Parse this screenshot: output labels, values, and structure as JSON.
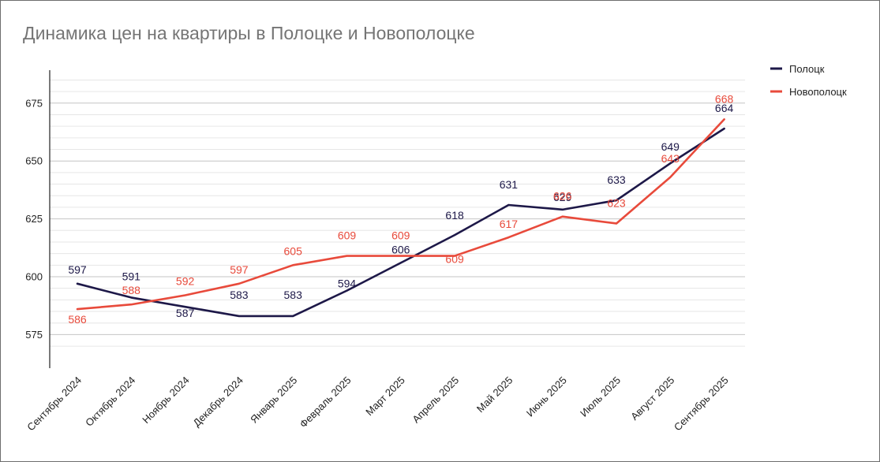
{
  "chart_data": {
    "type": "line",
    "title": "Динамика цен на квартиры в Полоцке и Новополоцке",
    "categories": [
      "Сентябрь 2024",
      "Октябрь 2024",
      "Ноябрь 2024",
      "Декабрь 2024",
      "Январь 2025",
      "Февраль 2025",
      "Март 2025",
      "Апрель 2025",
      "Май 2025",
      "Июнь 2025",
      "Июль 2025",
      "Август 2025",
      "Сентябрь 2025"
    ],
    "series": [
      {
        "name": "Полоцк",
        "color": "#1d1848",
        "values": [
          597,
          591,
          587,
          583,
          583,
          594,
          606,
          618,
          631,
          629,
          633,
          649,
          664
        ]
      },
      {
        "name": "Новополоцк",
        "color": "#e84a3b",
        "values": [
          586,
          588,
          592,
          597,
          605,
          609,
          609,
          609,
          617,
          626,
          623,
          643,
          668
        ]
      }
    ],
    "yticks": [
      575,
      600,
      625,
      650,
      675
    ],
    "ylim": [
      567.5,
      687.5
    ],
    "grid": true,
    "legend_position": "top-right"
  }
}
